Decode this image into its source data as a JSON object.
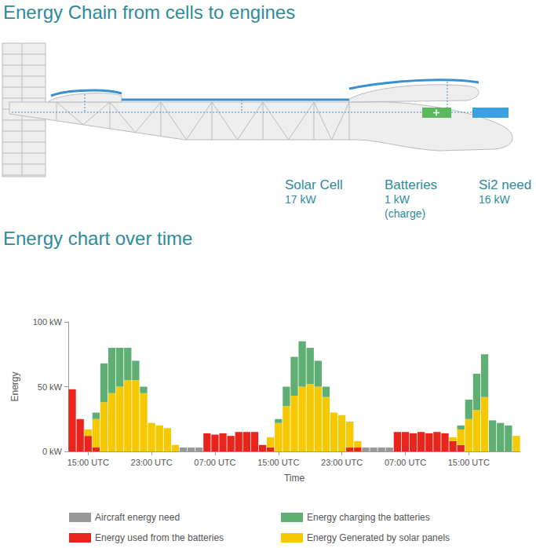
{
  "header": {
    "title": "Energy Chain from cells to engines"
  },
  "diagram": {
    "components": [
      {
        "label": "Solar Cell",
        "value": "17 kW"
      },
      {
        "label": "Batteries",
        "value": "1 kW",
        "note": "(charge)"
      },
      {
        "label": "Si2 need",
        "value": "16 kW"
      }
    ]
  },
  "chart_data": {
    "type": "bar",
    "title": "Energy chart over time",
    "x_label": "Time",
    "y_label": "Energy",
    "categories": [
      null,
      null,
      "15:00 UTC",
      null,
      null,
      null,
      null,
      null,
      null,
      null,
      "23:00 UTC",
      null,
      null,
      null,
      null,
      null,
      null,
      null,
      "07:00 UTC",
      null,
      null,
      null,
      null,
      null,
      null,
      null,
      "15:00 UTC",
      null,
      null,
      null,
      null,
      null,
      null,
      null,
      "23:00 UTC",
      null,
      null,
      null,
      null,
      null,
      null,
      null,
      "07:00 UTC",
      null,
      null,
      null,
      null,
      null,
      null,
      null,
      "15:00 UTC",
      null,
      null,
      null,
      null,
      null,
      null
    ],
    "series": [
      {
        "name": "Aircraft energy need",
        "color": "#999999",
        "values": [
          0,
          0,
          0,
          0,
          0,
          0,
          0,
          0,
          0,
          0,
          0,
          0,
          0,
          0,
          3,
          3,
          3,
          0,
          0,
          0,
          0,
          0,
          0,
          0,
          0,
          0,
          0,
          0,
          0,
          0,
          0,
          0,
          0,
          0,
          0,
          0,
          0,
          3,
          3,
          3,
          3,
          0,
          0,
          0,
          0,
          0,
          0,
          0,
          0,
          0,
          0,
          0,
          0,
          0,
          0,
          0,
          0
        ]
      },
      {
        "name": "Energy used from the batteries",
        "color": "#e8241c",
        "values": [
          48,
          25,
          12,
          3,
          0,
          0,
          0,
          0,
          0,
          0,
          0,
          0,
          0,
          0,
          0,
          0,
          0,
          14,
          13,
          14,
          12,
          15,
          15,
          15,
          5,
          3,
          0,
          0,
          0,
          0,
          0,
          0,
          0,
          0,
          0,
          3,
          3,
          0,
          0,
          0,
          0,
          15,
          15,
          14,
          15,
          14,
          15,
          14,
          8,
          5,
          0,
          0,
          0,
          0,
          0,
          0,
          0
        ]
      },
      {
        "name": "Energy Generated by solar panels",
        "color": "#f5c800",
        "values": [
          0,
          0,
          5,
          22,
          38,
          45,
          50,
          55,
          55,
          45,
          22,
          20,
          18,
          5,
          0,
          0,
          0,
          0,
          0,
          0,
          0,
          0,
          0,
          0,
          0,
          8,
          22,
          35,
          43,
          50,
          52,
          50,
          42,
          30,
          28,
          20,
          5,
          0,
          0,
          0,
          0,
          0,
          0,
          0,
          0,
          0,
          0,
          0,
          3,
          12,
          25,
          32,
          42,
          0,
          0,
          0,
          12
        ]
      },
      {
        "name": "Energy charging the batteries",
        "color": "#5fae73",
        "values": [
          0,
          0,
          0,
          5,
          30,
          35,
          30,
          25,
          15,
          5,
          0,
          0,
          0,
          0,
          0,
          0,
          0,
          0,
          0,
          0,
          0,
          0,
          0,
          0,
          0,
          0,
          3,
          15,
          30,
          35,
          28,
          20,
          8,
          0,
          0,
          0,
          0,
          0,
          0,
          0,
          0,
          0,
          0,
          0,
          0,
          0,
          0,
          0,
          0,
          3,
          15,
          28,
          33,
          24,
          22,
          20,
          0
        ]
      }
    ],
    "ylim": [
      0,
      100
    ],
    "yticks": [
      {
        "value": 0,
        "label": "0 kW"
      },
      {
        "value": 50,
        "label": "50 kW"
      },
      {
        "value": 100,
        "label": "100 kW"
      }
    ],
    "stacked": true,
    "grid": false,
    "legend": "bottom"
  }
}
